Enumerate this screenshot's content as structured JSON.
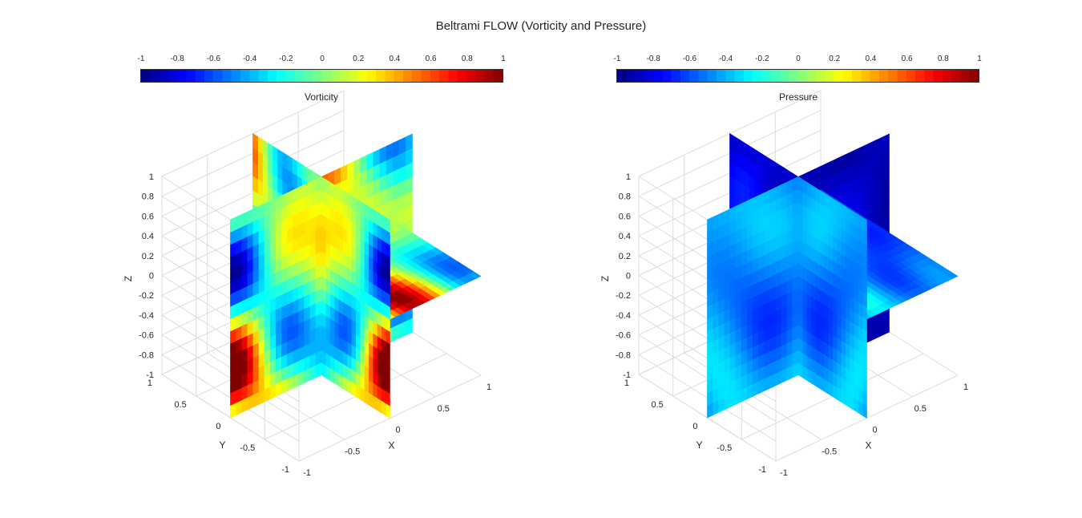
{
  "figure_title": "Beltrami FLOW (Vorticity and Pressure)",
  "chart_data": [
    {
      "type": "heatmap",
      "title": "Vorticity",
      "xlabel": "X",
      "ylabel": "Y",
      "zlabel": "Z",
      "xlim": [
        -1,
        1
      ],
      "ylim": [
        -1,
        1
      ],
      "zlim": [
        -1,
        1
      ],
      "x_ticks": [
        "-1",
        "-0.5",
        "0",
        "0.5",
        "1"
      ],
      "y_ticks": [
        "1",
        "0.5",
        "0",
        "-0.5",
        "-1"
      ],
      "z_ticks": [
        "1",
        "0.8",
        "0.6",
        "0.4",
        "0.2",
        "0",
        "-0.2",
        "-0.4",
        "-0.6",
        "-0.8",
        "-1"
      ],
      "colorbar": {
        "location": "top",
        "colormap": "jet",
        "clim": [
          -1,
          1
        ],
        "ticks": [
          "-1",
          "-0.8",
          "-0.6",
          "-0.4",
          "-0.2",
          "0",
          "0.2",
          "0.4",
          "0.6",
          "0.8",
          "1"
        ]
      },
      "slices": "x = 0, y = 0, z = 0 planes",
      "grid": true,
      "value_range_shown": [
        -1,
        1
      ]
    },
    {
      "type": "heatmap",
      "title": "Pressure",
      "xlabel": "X",
      "ylabel": "Y",
      "zlabel": "Z",
      "xlim": [
        -1,
        1
      ],
      "ylim": [
        -1,
        1
      ],
      "zlim": [
        -1,
        1
      ],
      "x_ticks": [
        "-1",
        "-0.5",
        "0",
        "0.5",
        "1"
      ],
      "y_ticks": [
        "1",
        "0.5",
        "0",
        "-0.5",
        "-1"
      ],
      "z_ticks": [
        "1",
        "0.8",
        "0.6",
        "0.4",
        "0.2",
        "0",
        "-0.2",
        "-0.4",
        "-0.6",
        "-0.8",
        "-1"
      ],
      "colorbar": {
        "location": "top",
        "colormap": "jet",
        "clim": [
          -1,
          1
        ],
        "ticks": [
          "-1",
          "-0.8",
          "-0.6",
          "-0.4",
          "-0.2",
          "0",
          "0.2",
          "0.4",
          "0.6",
          "0.8",
          "1"
        ]
      },
      "slices": "x = 0, y = 0, z = 0 planes",
      "grid": true,
      "value_range_shown": [
        -1,
        -0.1
      ]
    }
  ]
}
